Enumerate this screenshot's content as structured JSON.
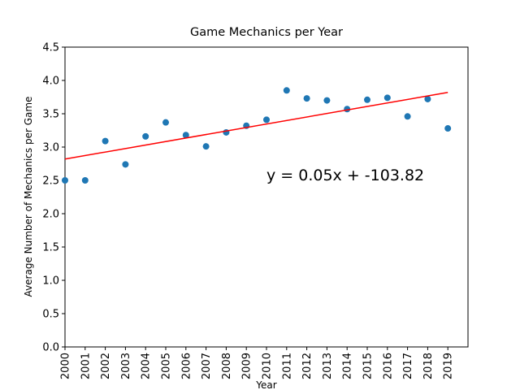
{
  "chart_data": {
    "type": "scatter",
    "title": "Game Mechanics per Year",
    "xlabel": "Year",
    "ylabel": "Average Number of Mechanics per Game",
    "x": [
      2000,
      2001,
      2002,
      2003,
      2004,
      2005,
      2006,
      2007,
      2008,
      2009,
      2010,
      2011,
      2012,
      2013,
      2014,
      2015,
      2016,
      2017,
      2018,
      2019
    ],
    "values": [
      2.5,
      2.5,
      3.09,
      2.74,
      3.16,
      3.37,
      3.18,
      3.01,
      3.22,
      3.32,
      3.41,
      3.85,
      3.73,
      3.7,
      3.57,
      3.71,
      3.74,
      3.46,
      3.72,
      3.28
    ],
    "color": "#1f77b4",
    "fit": {
      "x": [
        2000,
        2019
      ],
      "values": [
        2.82,
        3.82
      ],
      "color": "#ff0000"
    },
    "annotation": "y = 0.05x + -103.82",
    "xlim": [
      2000,
      2020
    ],
    "ylim": [
      0,
      4.5
    ],
    "xticks": [
      2000,
      2001,
      2002,
      2003,
      2004,
      2005,
      2006,
      2007,
      2008,
      2009,
      2010,
      2011,
      2012,
      2013,
      2014,
      2015,
      2016,
      2017,
      2018,
      2019
    ],
    "yticks": [
      {
        "value": 0,
        "label": "0.0"
      },
      {
        "value": 0.5,
        "label": "0.5"
      },
      {
        "value": 1,
        "label": "1.0"
      },
      {
        "value": 1.5,
        "label": "1.5"
      },
      {
        "value": 2,
        "label": "2.0"
      },
      {
        "value": 2.5,
        "label": "2.5"
      },
      {
        "value": 3,
        "label": "3.0"
      },
      {
        "value": 3.5,
        "label": "3.5"
      },
      {
        "value": 4,
        "label": "4.0"
      },
      {
        "value": 4.5,
        "label": "4.5"
      }
    ]
  }
}
